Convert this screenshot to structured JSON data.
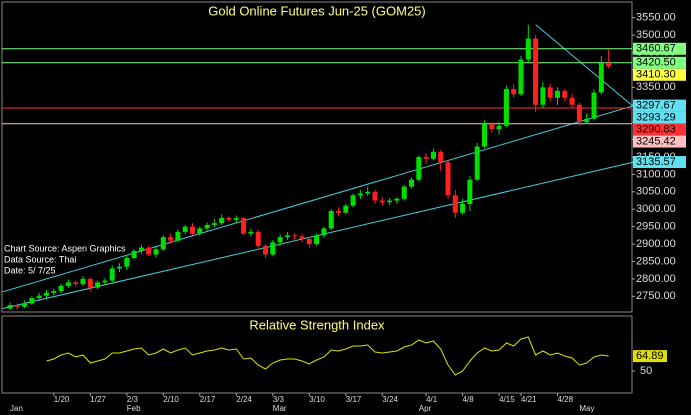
{
  "chart_data": [
    {
      "type": "candlestick",
      "title": "Gold Online Futures Jun-25 (GOM25)",
      "notes": [
        "Chart Source: Aspen Graphics",
        "Data Source: Thai",
        "Date:   5/ 7/25"
      ],
      "categories": [
        null,
        null,
        null,
        null,
        null,
        null,
        "1/20",
        null,
        null,
        null,
        null,
        "1/27",
        null,
        null,
        null,
        null,
        "2/3",
        null,
        null,
        null,
        null,
        "2/10",
        null,
        null,
        null,
        null,
        "2/17",
        null,
        null,
        null,
        null,
        "2/24",
        null,
        null,
        null,
        null,
        "3/3",
        null,
        null,
        null,
        null,
        "3/10",
        null,
        null,
        null,
        null,
        "3/17",
        null,
        null,
        null,
        null,
        "3/24",
        null,
        null,
        null,
        null,
        null,
        "4/1",
        null,
        null,
        null,
        null,
        "4/8",
        null,
        null,
        null,
        null,
        "4/15",
        null,
        null,
        "4/21",
        null,
        null,
        null,
        null,
        "4/28",
        null,
        null,
        null,
        null,
        null,
        null,
        null
      ],
      "months": [
        "Jan",
        null,
        null,
        null,
        null,
        null,
        null,
        null,
        null,
        null,
        null,
        null,
        null,
        null,
        null,
        null,
        "Feb",
        null,
        null,
        null,
        null,
        null,
        null,
        null,
        null,
        null,
        null,
        null,
        null,
        null,
        null,
        null,
        null,
        null,
        null,
        null,
        "Mar",
        null,
        null,
        null,
        null,
        null,
        null,
        null,
        null,
        null,
        null,
        null,
        null,
        null,
        null,
        null,
        null,
        null,
        null,
        null,
        "Apr",
        null,
        null,
        null,
        null,
        null,
        null,
        null,
        null,
        null,
        null,
        null,
        null,
        null,
        null,
        null,
        null,
        null,
        null,
        null,
        null,
        null,
        "May",
        null,
        null,
        null,
        null
      ],
      "open": [
        2715,
        2725,
        2720,
        2730,
        2745,
        2752,
        2760,
        2765,
        2780,
        2790,
        2785,
        2800,
        2775,
        2790,
        2795,
        2830,
        2835,
        2860,
        2880,
        2890,
        2870,
        2885,
        2920,
        2910,
        2935,
        2950,
        2930,
        2945,
        2955,
        2960,
        2975,
        2970,
        2975,
        2930,
        2935,
        2895,
        2870,
        2905,
        2920,
        2925,
        2922,
        2915,
        2900,
        2925,
        2945,
        2995,
        2990,
        3010,
        3040,
        3045,
        3050,
        3025,
        3020,
        3025,
        3030,
        3065,
        3085,
        3150,
        3145,
        3165,
        3135,
        3040,
        2990,
        3015,
        3085,
        3180,
        3245,
        3230,
        3240,
        3345,
        3330,
        3430,
        3490,
        3300,
        3350,
        3320,
        3340,
        3320,
        3300,
        3250,
        3260,
        3335,
        3420
      ],
      "high": [
        2732,
        2730,
        2738,
        2750,
        2760,
        2768,
        2772,
        2786,
        2798,
        2795,
        2808,
        2804,
        2795,
        2802,
        2838,
        2845,
        2866,
        2886,
        2898,
        2895,
        2892,
        2925,
        2930,
        2942,
        2955,
        2960,
        2950,
        2962,
        2972,
        2985,
        2980,
        2982,
        2978,
        2945,
        2940,
        2900,
        2912,
        2928,
        2935,
        2932,
        2930,
        2920,
        2930,
        2950,
        3000,
        3005,
        3015,
        3045,
        3055,
        3065,
        3055,
        3035,
        3032,
        3035,
        3070,
        3092,
        3155,
        3160,
        3175,
        3170,
        3140,
        3055,
        3030,
        3095,
        3190,
        3255,
        3250,
        3250,
        3355,
        3360,
        3440,
        3530,
        3500,
        3365,
        3360,
        3350,
        3345,
        3330,
        3305,
        3275,
        3345,
        3440,
        3460
      ],
      "low": [
        2710,
        2712,
        2716,
        2725,
        2740,
        2745,
        2752,
        2760,
        2774,
        2778,
        2780,
        2765,
        2770,
        2782,
        2790,
        2820,
        2825,
        2855,
        2872,
        2865,
        2862,
        2880,
        2900,
        2905,
        2928,
        2925,
        2925,
        2938,
        2948,
        2955,
        2962,
        2960,
        2925,
        2922,
        2888,
        2860,
        2865,
        2895,
        2912,
        2910,
        2905,
        2890,
        2895,
        2918,
        2940,
        2980,
        2985,
        3005,
        3030,
        3038,
        3015,
        3010,
        3012,
        3015,
        3025,
        3060,
        3080,
        3130,
        3140,
        3110,
        3030,
        2975,
        2985,
        2995,
        3080,
        3175,
        3220,
        3215,
        3235,
        3320,
        3325,
        3420,
        3280,
        3290,
        3310,
        3300,
        3310,
        3290,
        3240,
        3245,
        3255,
        3330,
        3405
      ],
      "close": [
        2725,
        2720,
        2730,
        2745,
        2752,
        2760,
        2765,
        2780,
        2790,
        2785,
        2800,
        2775,
        2790,
        2795,
        2830,
        2835,
        2860,
        2880,
        2890,
        2870,
        2885,
        2920,
        2910,
        2935,
        2950,
        2930,
        2945,
        2955,
        2960,
        2975,
        2970,
        2975,
        2930,
        2935,
        2895,
        2870,
        2905,
        2920,
        2925,
        2922,
        2915,
        2900,
        2925,
        2945,
        2995,
        2990,
        3010,
        3040,
        3045,
        3050,
        3025,
        3020,
        3025,
        3030,
        3065,
        3085,
        3150,
        3145,
        3165,
        3135,
        3040,
        2990,
        3015,
        3085,
        3180,
        3245,
        3230,
        3240,
        3345,
        3330,
        3430,
        3490,
        3300,
        3350,
        3320,
        3340,
        3320,
        3300,
        3250,
        3260,
        3335,
        3420,
        3410
      ],
      "up_color": "#00e000",
      "down_color": "#ff2020",
      "ylim": [
        2705,
        3595
      ],
      "yticks": [
        {
          "value": 2750,
          "label": "2750.00"
        },
        {
          "value": 2800,
          "label": "2800.00"
        },
        {
          "value": 2850,
          "label": "2850.00"
        },
        {
          "value": 2900,
          "label": "2900.00"
        },
        {
          "value": 2950,
          "label": "2950.00"
        },
        {
          "value": 3000,
          "label": "3000.00"
        },
        {
          "value": 3050,
          "label": "3050.00"
        },
        {
          "value": 3100,
          "label": "3100.00"
        },
        {
          "value": 3150,
          "label": "3150.00"
        },
        {
          "value": 3200,
          "label": "3200.00"
        },
        {
          "value": 3250,
          "label": "3250.00"
        },
        {
          "value": 3300,
          "label": "3300.00"
        },
        {
          "value": 3350,
          "label": "3350.00"
        },
        {
          "value": 3400,
          "label": "3400.00"
        },
        {
          "value": 3450,
          "label": "3450.00"
        },
        {
          "value": 3500,
          "label": "3500.00"
        },
        {
          "value": 3550,
          "label": "3550.00"
        }
      ],
      "price_labels": [
        {
          "value": 3460.67,
          "label": "3460.67",
          "color": "#80ff80",
          "line": true
        },
        {
          "value": 3420.5,
          "label": "3420.50",
          "color": "#80ff80",
          "line": true
        },
        {
          "value": 3410.3,
          "label": "3410.30",
          "color": "#ffff40",
          "line": false
        },
        {
          "value": 3297.67,
          "label": "3297.67",
          "color": "#60e0f0",
          "line": false
        },
        {
          "value": 3293.29,
          "label": "3293.29",
          "color": "#60e0f0",
          "line": false
        },
        {
          "value": 3290.83,
          "label": "3290.83",
          "color": "#ff3030",
          "line": true
        },
        {
          "value": 3245.42,
          "label": "3245.42",
          "color": "#ffc0c0",
          "line": true
        },
        {
          "value": 3135.57,
          "label": "3135.57",
          "color": "#60e0f0",
          "line": false
        }
      ],
      "trendline_color": "#40d0e0",
      "trendlines": [
        {
          "x": [
            -1,
            85.5
          ],
          "y": [
            2763,
            3297.67
          ]
        },
        {
          "x": [
            -1,
            85.5
          ],
          "y": [
            2715,
            3135.57
          ]
        },
        {
          "x": [
            72,
            85.5
          ],
          "y": [
            3530,
            3293.29
          ]
        }
      ]
    },
    {
      "type": "line",
      "title": "Relative Strength Index",
      "color": "#e0e000",
      "values": [
        null,
        null,
        null,
        null,
        null,
        60,
        62,
        66,
        68,
        64,
        66,
        58,
        60,
        62,
        68,
        68,
        70,
        72,
        73,
        66,
        68,
        72,
        68,
        71,
        73,
        66,
        68,
        70,
        71,
        73,
        71,
        72,
        62,
        63,
        56,
        52,
        58,
        61,
        62,
        62,
        60,
        57,
        61,
        64,
        71,
        70,
        72,
        75,
        75,
        76,
        69,
        68,
        69,
        70,
        74,
        76,
        81,
        78,
        80,
        72,
        56,
        46,
        50,
        60,
        68,
        73,
        70,
        71,
        78,
        75,
        82,
        84,
        66,
        70,
        66,
        68,
        65,
        63,
        56,
        58,
        64,
        66,
        64.89
      ],
      "ylim": [
        28,
        105
      ],
      "yticks": [
        50
      ]
    }
  ]
}
